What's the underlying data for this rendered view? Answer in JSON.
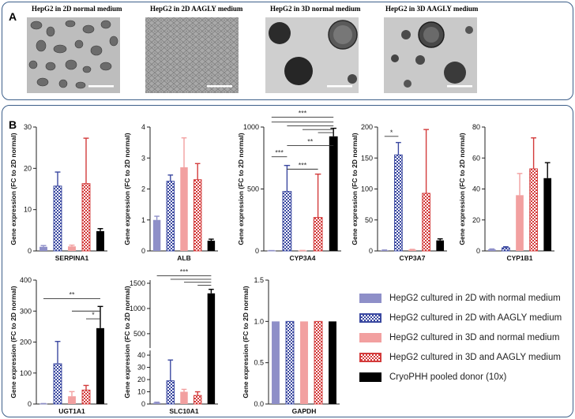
{
  "panel_a": {
    "label": "A",
    "images": [
      {
        "caption": "HepG2 in 2D normal medium"
      },
      {
        "caption": "HepG2 in 2D AAGLY medium"
      },
      {
        "caption": "HepG2 in 3D normal medium"
      },
      {
        "caption": "HepG2 in 3D AAGLY medium"
      }
    ]
  },
  "panel_b": {
    "label": "B"
  },
  "legend": [
    {
      "label": "HepG2 cultured in 2D with normal medium",
      "color": "#8e8fc8",
      "pattern": "solid"
    },
    {
      "label": "HepG2 cultured in 2D with AAGLY medium",
      "color": "#3a48a0",
      "pattern": "checker"
    },
    {
      "label": "HepG2 cultured in 3D and normal medium",
      "color": "#f2a0a0",
      "pattern": "solid"
    },
    {
      "label": "HepG2 cultured in 3D and AAGLY medium",
      "color": "#d33b3b",
      "pattern": "checker"
    },
    {
      "label": "CryoPHH pooled donor (10x)",
      "color": "#000000",
      "pattern": "solid"
    }
  ],
  "chart_data": [
    {
      "type": "bar",
      "xlabel": "SERPINA1",
      "ylabel": "Gene expression (FC to 2D normal)",
      "ylim": [
        0,
        30
      ],
      "yticks": [
        "0",
        "10",
        "20",
        "30"
      ],
      "values": [
        1,
        15.7,
        1.1,
        16.3,
        4.8
      ],
      "errors": [
        0.3,
        3.4,
        0.3,
        11.0,
        0.6
      ],
      "significance": []
    },
    {
      "type": "bar",
      "xlabel": "ALB",
      "ylabel": "Gene expression (FC to 2D normal)",
      "ylim": [
        0,
        4
      ],
      "yticks": [
        "0",
        "1",
        "2",
        "3",
        "4"
      ],
      "values": [
        1,
        2.25,
        2.7,
        2.3,
        0.33
      ],
      "errors": [
        0.12,
        0.2,
        0.95,
        0.52,
        0.05
      ],
      "significance": []
    },
    {
      "type": "bar",
      "xlabel": "CYP3A4",
      "ylabel": "Gene expression (FC to 2D normal)",
      "ylim": [
        0,
        1000
      ],
      "yticks": [
        "0",
        "500",
        "1000"
      ],
      "values": [
        2,
        480,
        3,
        270,
        925
      ],
      "errors": [
        1,
        210,
        1,
        350,
        65
      ],
      "significance": [
        {
          "from": 0,
          "to": 1,
          "y": 760,
          "label": "***"
        },
        {
          "from": 1,
          "to": 3,
          "y": 660,
          "label": "***"
        },
        {
          "from": 1,
          "to": 4,
          "y": 850,
          "label": "**"
        },
        {
          "from": 0,
          "to": 4,
          "y": 1080,
          "label": "***"
        },
        {
          "from": 0,
          "to": 4,
          "y": 1040,
          "label": ""
        },
        {
          "from": 1,
          "to": 4,
          "y": 1010,
          "label": ""
        },
        {
          "from": 2,
          "to": 4,
          "y": 980,
          "label": ""
        },
        {
          "from": 3,
          "to": 4,
          "y": 955,
          "label": ""
        }
      ]
    },
    {
      "type": "bar",
      "xlabel": "CYP3A7",
      "ylabel": "Gene expression (FC to 2D normal)",
      "ylim": [
        0,
        200
      ],
      "yticks": [
        "0",
        "50",
        "100",
        "150",
        "200"
      ],
      "values": [
        1,
        155,
        2,
        93,
        17
      ],
      "errors": [
        0.5,
        20,
        0.5,
        103,
        2.5
      ],
      "significance": [
        {
          "from": 0,
          "to": 1,
          "y": 185,
          "label": "*"
        }
      ]
    },
    {
      "type": "bar",
      "xlabel": "CYP1B1",
      "ylabel": "Gene expression (FC to 2D normal)",
      "ylim": [
        0,
        80
      ],
      "yticks": [
        "0",
        "20",
        "40",
        "60",
        "80"
      ],
      "values": [
        1,
        2,
        36,
        53,
        47
      ],
      "errors": [
        0.3,
        0.7,
        14,
        20,
        10
      ],
      "significance": []
    },
    {
      "type": "bar",
      "xlabel": "UGT1A1",
      "ylabel": "Gene expression (FC to 2D normal)",
      "ylim": [
        0,
        400
      ],
      "yticks": [
        "0",
        "100",
        "200",
        "300",
        "400"
      ],
      "values": [
        1,
        130,
        25,
        45,
        245
      ],
      "errors": [
        0.5,
        72,
        15,
        15,
        70
      ],
      "significance": [
        {
          "from": 0,
          "to": 4,
          "y": 340,
          "label": "**"
        },
        {
          "from": 2,
          "to": 4,
          "y": 300,
          "label": ""
        },
        {
          "from": 3,
          "to": 4,
          "y": 275,
          "label": "*"
        }
      ]
    },
    {
      "type": "bar",
      "xlabel": "SLC10A1",
      "ylabel": "Gene expression (FC to 2D normal)",
      "ylim": [
        0,
        1500
      ],
      "yticks": [
        "0",
        "10",
        "20",
        "30",
        "40",
        "500",
        "1000",
        "1500"
      ],
      "axis_break": {
        "lower": [
          0,
          40
        ],
        "upper": [
          200,
          1500
        ]
      },
      "values": [
        1,
        19,
        10,
        7,
        1300
      ],
      "errors": [
        0.5,
        17,
        2,
        3,
        80
      ],
      "significance": [
        {
          "from": 0,
          "to": 4,
          "y": 1650,
          "label": "***"
        },
        {
          "from": 1,
          "to": 4,
          "y": 1580,
          "label": ""
        },
        {
          "from": 2,
          "to": 4,
          "y": 1520,
          "label": ""
        },
        {
          "from": 3,
          "to": 4,
          "y": 1460,
          "label": ""
        }
      ]
    },
    {
      "type": "bar",
      "xlabel": "GAPDH",
      "ylabel": "Gene expression (FC to 2D normal)",
      "ylim": [
        0,
        1.5
      ],
      "yticks": [
        "0.0",
        "0.5",
        "1.0",
        "1.5"
      ],
      "values": [
        1,
        1,
        1,
        1,
        1
      ],
      "errors": [
        0,
        0,
        0,
        0,
        0
      ],
      "significance": []
    }
  ]
}
